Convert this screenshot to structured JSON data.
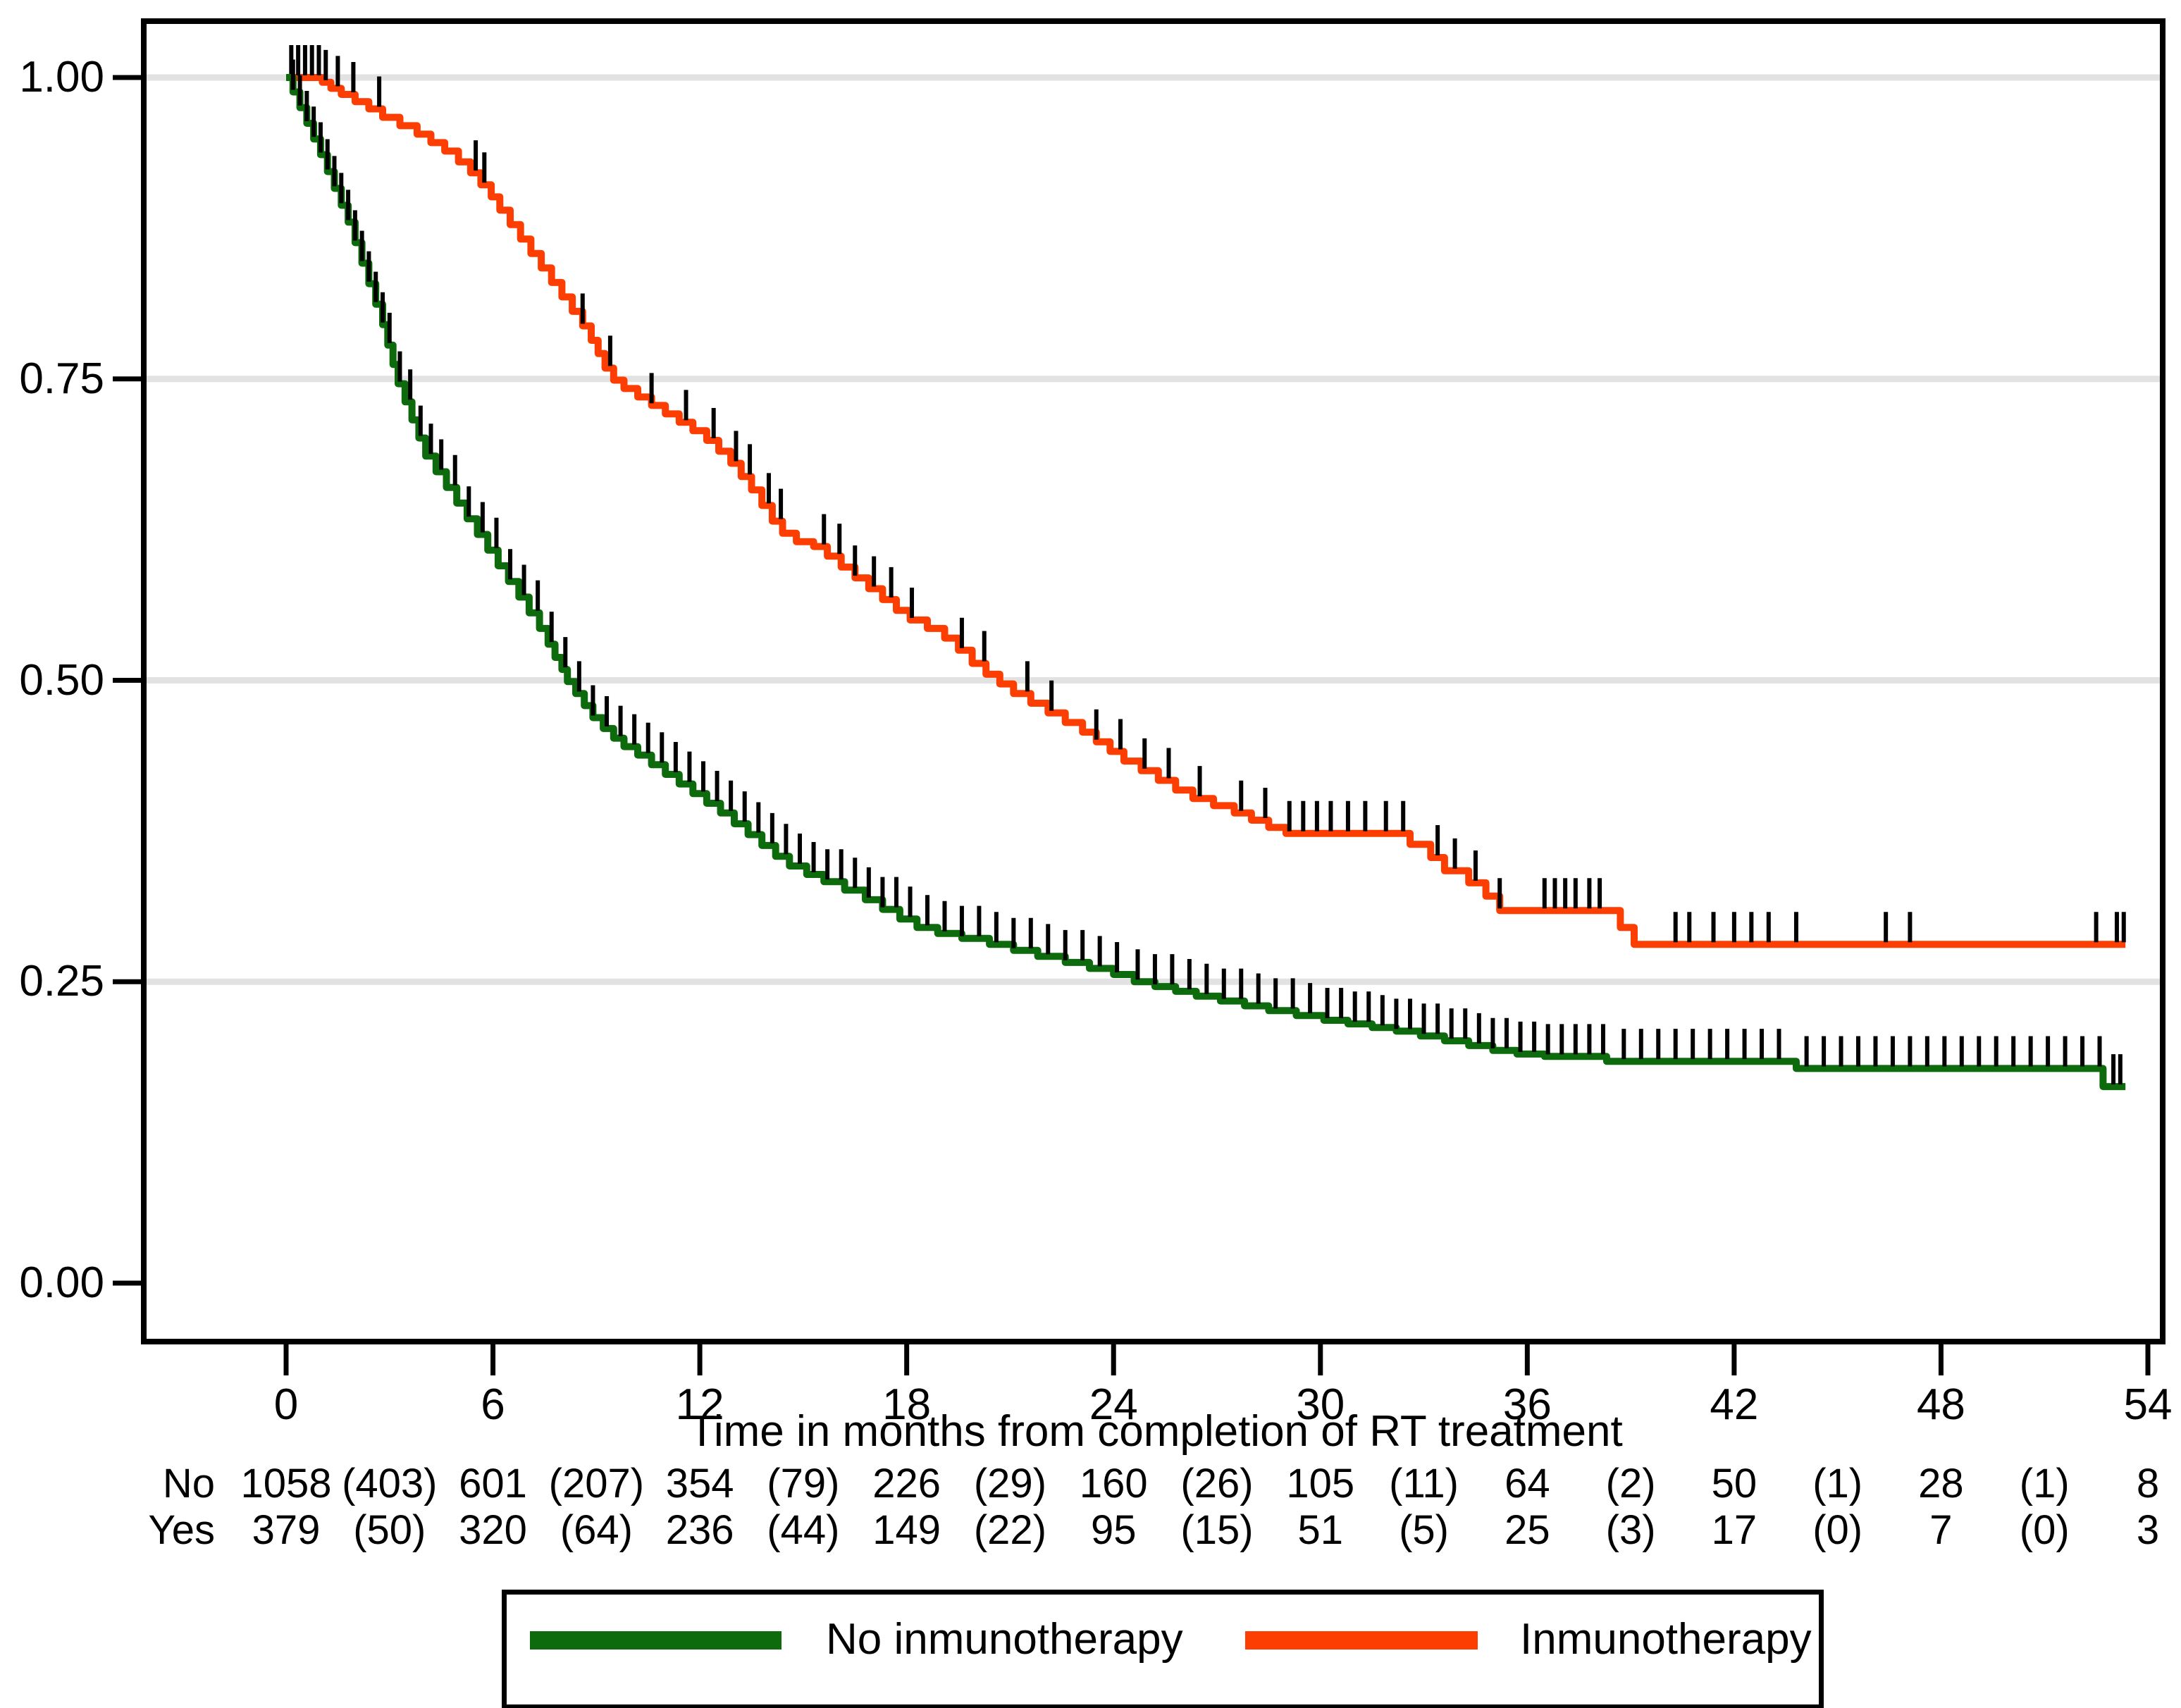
{
  "y_axis": {
    "tick_labels": [
      "1.00",
      "0.75",
      "0.50",
      "0.25",
      "0.00"
    ],
    "tick_values": [
      1.0,
      0.75,
      0.5,
      0.25,
      0.0
    ]
  },
  "x_axis": {
    "title": "Time in months from completion of RT treatment",
    "tick_labels": [
      "0",
      "6",
      "12",
      "18",
      "24",
      "30",
      "36",
      "42",
      "48",
      "54"
    ],
    "tick_values": [
      0,
      6,
      12,
      18,
      24,
      30,
      36,
      42,
      48,
      54
    ]
  },
  "risk_table": {
    "rows": [
      {
        "label": "No",
        "at_risk": [
          "1058",
          "601",
          "354",
          "226",
          "160",
          "105",
          "64",
          "50",
          "28",
          "8"
        ],
        "events": [
          "(403)",
          "(207)",
          "(79)",
          "(29)",
          "(26)",
          "(11)",
          "(2)",
          "(1)",
          "(1)"
        ]
      },
      {
        "label": "Yes",
        "at_risk": [
          "379",
          "320",
          "236",
          "149",
          "95",
          "51",
          "25",
          "17",
          "7",
          "3"
        ],
        "events": [
          "(50)",
          "(64)",
          "(44)",
          "(22)",
          "(15)",
          "(5)",
          "(3)",
          "(0)",
          "(0)"
        ]
      }
    ]
  },
  "legend": {
    "items": [
      {
        "label": "No inmunotherapy",
        "color": "#0d6b0d"
      },
      {
        "label": "Inmunotherapy",
        "color": "#fc3e02"
      }
    ]
  },
  "colors": {
    "no_immunotherapy": "#0d6b0d",
    "immunotherapy": "#fc3e02",
    "gridline": "#e2e2e2",
    "frame": "#000000"
  },
  "chart_data": {
    "type": "line",
    "subtype": "kaplan-meier-step",
    "title": "",
    "xlabel": "Time in months from completion of RT treatment",
    "ylabel": "",
    "xlim": [
      0,
      54
    ],
    "ylim": [
      0.0,
      1.0
    ],
    "x_ticks": [
      0,
      6,
      12,
      18,
      24,
      30,
      36,
      42,
      48,
      54
    ],
    "y_ticks": [
      0.0,
      0.25,
      0.5,
      0.75,
      1.0
    ],
    "grid": "horizontal-at-0.25-0.50-0.75-1.00",
    "legend_position": "bottom-box",
    "curve_end_time": 53.35,
    "series": [
      {
        "name": "No inmunotherapy",
        "color": "#0d6b0d",
        "steps": [
          [
            0,
            1.0
          ],
          [
            0.2,
            0.988
          ],
          [
            0.4,
            0.975
          ],
          [
            0.6,
            0.962
          ],
          [
            0.8,
            0.949
          ],
          [
            1.0,
            0.936
          ],
          [
            1.2,
            0.922
          ],
          [
            1.4,
            0.908
          ],
          [
            1.6,
            0.894
          ],
          [
            1.8,
            0.88
          ],
          [
            2.0,
            0.863
          ],
          [
            2.2,
            0.846
          ],
          [
            2.4,
            0.829
          ],
          [
            2.6,
            0.812
          ],
          [
            2.8,
            0.795
          ],
          [
            2.95,
            0.778
          ],
          [
            3.1,
            0.762
          ],
          [
            3.25,
            0.746
          ],
          [
            3.45,
            0.731
          ],
          [
            3.65,
            0.716
          ],
          [
            3.85,
            0.701
          ],
          [
            4.05,
            0.686
          ],
          [
            4.35,
            0.673
          ],
          [
            4.65,
            0.66
          ],
          [
            4.95,
            0.647
          ],
          [
            5.25,
            0.634
          ],
          [
            5.55,
            0.621
          ],
          [
            5.85,
            0.608
          ],
          [
            6.15,
            0.595
          ],
          [
            6.45,
            0.582
          ],
          [
            6.75,
            0.569
          ],
          [
            7.05,
            0.556
          ],
          [
            7.35,
            0.543
          ],
          [
            7.6,
            0.53
          ],
          [
            7.8,
            0.519
          ],
          [
            8.0,
            0.509
          ],
          [
            8.16,
            0.499
          ],
          [
            8.4,
            0.489
          ],
          [
            8.65,
            0.479
          ],
          [
            8.9,
            0.469
          ],
          [
            9.2,
            0.46
          ],
          [
            9.5,
            0.452
          ],
          [
            9.8,
            0.445
          ],
          [
            10.2,
            0.438
          ],
          [
            10.6,
            0.43
          ],
          [
            11.0,
            0.422
          ],
          [
            11.4,
            0.414
          ],
          [
            11.8,
            0.406
          ],
          [
            12.2,
            0.398
          ],
          [
            12.6,
            0.39
          ],
          [
            13.0,
            0.381
          ],
          [
            13.4,
            0.372
          ],
          [
            13.8,
            0.363
          ],
          [
            14.2,
            0.354
          ],
          [
            14.6,
            0.346
          ],
          [
            15.1,
            0.339
          ],
          [
            15.6,
            0.333
          ],
          [
            16.2,
            0.326
          ],
          [
            16.8,
            0.318
          ],
          [
            17.3,
            0.31
          ],
          [
            17.8,
            0.302
          ],
          [
            18.3,
            0.295
          ],
          [
            18.9,
            0.29
          ],
          [
            19.6,
            0.286
          ],
          [
            20.4,
            0.281
          ],
          [
            21.1,
            0.276
          ],
          [
            21.8,
            0.271
          ],
          [
            22.6,
            0.266
          ],
          [
            23.3,
            0.261
          ],
          [
            24.0,
            0.256
          ],
          [
            24.6,
            0.25
          ],
          [
            25.2,
            0.246
          ],
          [
            25.8,
            0.242
          ],
          [
            26.4,
            0.238
          ],
          [
            27.1,
            0.234
          ],
          [
            27.8,
            0.23
          ],
          [
            28.5,
            0.226
          ],
          [
            29.3,
            0.222
          ],
          [
            30.1,
            0.218
          ],
          [
            30.8,
            0.215
          ],
          [
            31.5,
            0.212
          ],
          [
            32.2,
            0.209
          ],
          [
            32.9,
            0.205
          ],
          [
            33.6,
            0.201
          ],
          [
            34.3,
            0.197
          ],
          [
            35.0,
            0.193
          ],
          [
            35.7,
            0.19
          ],
          [
            36.5,
            0.188
          ],
          [
            38.3,
            0.184
          ],
          [
            43.8,
            0.178
          ],
          [
            52.7,
            0.163
          ]
        ],
        "censor_times": [
          0.2,
          0.4,
          0.6,
          0.8,
          1.0,
          1.2,
          1.4,
          1.6,
          1.8,
          2.0,
          2.2,
          2.4,
          2.6,
          2.8,
          3.0,
          3.3,
          3.6,
          3.9,
          4.2,
          4.5,
          4.9,
          5.3,
          5.7,
          6.1,
          6.5,
          6.9,
          7.3,
          7.7,
          8.1,
          8.5,
          8.9,
          9.3,
          9.7,
          10.1,
          10.5,
          10.9,
          11.3,
          11.7,
          12.1,
          12.5,
          12.9,
          13.3,
          13.7,
          14.1,
          14.5,
          14.9,
          15.3,
          15.7,
          16.1,
          16.5,
          16.9,
          17.3,
          17.7,
          18.1,
          18.6,
          19.1,
          19.6,
          20.1,
          20.6,
          21.1,
          21.6,
          22.1,
          22.6,
          23.1,
          23.6,
          24.1,
          24.7,
          25.2,
          25.7,
          26.2,
          26.7,
          27.2,
          27.7,
          28.2,
          28.7,
          29.2,
          29.7,
          30.2,
          30.6,
          31.0,
          31.4,
          31.8,
          32.2,
          32.6,
          33.0,
          33.4,
          33.8,
          34.2,
          34.6,
          35.0,
          35.4,
          35.8,
          36.2,
          36.6,
          37.0,
          37.4,
          37.8,
          38.2,
          38.8,
          39.3,
          39.8,
          40.3,
          40.8,
          41.3,
          41.8,
          42.3,
          42.8,
          43.3,
          44.1,
          44.6,
          45.1,
          45.6,
          46.1,
          46.6,
          47.1,
          47.6,
          48.1,
          48.6,
          49.1,
          49.6,
          50.1,
          50.6,
          51.1,
          51.6,
          52.1,
          52.6,
          53.0,
          53.2
        ]
      },
      {
        "name": "Inmunotherapy",
        "color": "#fc3e02",
        "steps": [
          [
            0,
            1.0
          ],
          [
            1.05,
            0.996
          ],
          [
            1.3,
            0.991
          ],
          [
            1.6,
            0.986
          ],
          [
            2.0,
            0.98
          ],
          [
            2.4,
            0.974
          ],
          [
            2.8,
            0.967
          ],
          [
            3.3,
            0.96
          ],
          [
            3.8,
            0.953
          ],
          [
            4.2,
            0.946
          ],
          [
            4.6,
            0.939
          ],
          [
            5.0,
            0.93
          ],
          [
            5.35,
            0.921
          ],
          [
            5.65,
            0.911
          ],
          [
            5.95,
            0.901
          ],
          [
            6.2,
            0.89
          ],
          [
            6.5,
            0.878
          ],
          [
            6.8,
            0.866
          ],
          [
            7.1,
            0.854
          ],
          [
            7.4,
            0.842
          ],
          [
            7.7,
            0.83
          ],
          [
            8.0,
            0.818
          ],
          [
            8.3,
            0.806
          ],
          [
            8.6,
            0.794
          ],
          [
            8.85,
            0.782
          ],
          [
            9.05,
            0.771
          ],
          [
            9.25,
            0.759
          ],
          [
            9.5,
            0.749
          ],
          [
            9.8,
            0.742
          ],
          [
            10.2,
            0.735
          ],
          [
            10.6,
            0.728
          ],
          [
            11.0,
            0.721
          ],
          [
            11.4,
            0.714
          ],
          [
            11.8,
            0.707
          ],
          [
            12.2,
            0.699
          ],
          [
            12.55,
            0.69
          ],
          [
            12.9,
            0.68
          ],
          [
            13.2,
            0.669
          ],
          [
            13.5,
            0.658
          ],
          [
            13.8,
            0.645
          ],
          [
            14.1,
            0.632
          ],
          [
            14.4,
            0.622
          ],
          [
            14.8,
            0.615
          ],
          [
            15.3,
            0.611
          ],
          [
            15.7,
            0.603
          ],
          [
            16.1,
            0.594
          ],
          [
            16.5,
            0.585
          ],
          [
            16.9,
            0.576
          ],
          [
            17.3,
            0.567
          ],
          [
            17.7,
            0.558
          ],
          [
            18.1,
            0.55
          ],
          [
            18.6,
            0.543
          ],
          [
            19.1,
            0.535
          ],
          [
            19.5,
            0.525
          ],
          [
            19.9,
            0.514
          ],
          [
            20.3,
            0.505
          ],
          [
            20.7,
            0.497
          ],
          [
            21.1,
            0.489
          ],
          [
            21.6,
            0.481
          ],
          [
            22.1,
            0.473
          ],
          [
            22.6,
            0.465
          ],
          [
            23.1,
            0.457
          ],
          [
            23.5,
            0.449
          ],
          [
            23.9,
            0.441
          ],
          [
            24.3,
            0.433
          ],
          [
            24.8,
            0.425
          ],
          [
            25.3,
            0.417
          ],
          [
            25.8,
            0.409
          ],
          [
            26.3,
            0.402
          ],
          [
            26.9,
            0.396
          ],
          [
            27.5,
            0.39
          ],
          [
            28.0,
            0.384
          ],
          [
            28.5,
            0.378
          ],
          [
            29.0,
            0.373
          ],
          [
            32.6,
            0.364
          ],
          [
            33.2,
            0.353
          ],
          [
            33.6,
            0.342
          ],
          [
            34.3,
            0.332
          ],
          [
            34.8,
            0.321
          ],
          [
            35.2,
            0.309
          ],
          [
            38.7,
            0.295
          ],
          [
            39.1,
            0.281
          ]
        ],
        "censor_times": [
          0.15,
          0.35,
          0.55,
          0.75,
          0.95,
          1.15,
          1.5,
          1.95,
          2.7,
          5.5,
          5.75,
          8.6,
          9.4,
          10.6,
          11.6,
          12.4,
          13.05,
          13.45,
          14.0,
          14.35,
          15.6,
          16.05,
          16.5,
          17.05,
          17.55,
          18.15,
          19.6,
          20.25,
          21.5,
          22.2,
          23.5,
          24.2,
          24.9,
          25.6,
          26.5,
          27.7,
          28.4,
          29.1,
          29.5,
          29.9,
          30.3,
          30.8,
          31.3,
          31.9,
          32.4,
          33.4,
          33.9,
          34.5,
          35.2,
          36.5,
          36.8,
          37.1,
          37.4,
          37.8,
          38.1,
          40.3,
          40.7,
          41.4,
          42.0,
          42.5,
          43.0,
          43.8,
          46.4,
          47.1,
          52.5,
          53.1,
          53.3
        ]
      }
    ]
  }
}
